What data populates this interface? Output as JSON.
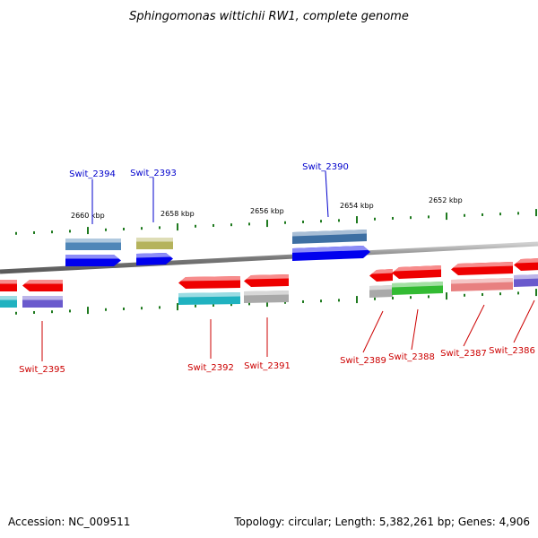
{
  "title": "Sphingomonas wittichii RW1, complete genome",
  "footer": {
    "accession": "Accession: NC_009511",
    "summary": "Topology: circular; Length: 5,382,261 bp; Genes: 4,906"
  },
  "colors": {
    "backbone": "#8a8a8a",
    "tick": "#1f7a1f",
    "top_label": "#0000cc",
    "bottom_label": "#cc0000"
  },
  "ticks": [
    {
      "label": "2660 kbp"
    },
    {
      "label": "2658 kbp"
    },
    {
      "label": "2656 kbp"
    },
    {
      "label": "2654 kbp"
    },
    {
      "label": "2652 kbp"
    }
  ],
  "genes_top": [
    {
      "label": "Swit_2394",
      "gene_color": "#4f86b8",
      "cds_color": "#0000ee"
    },
    {
      "label": "Swit_2393",
      "gene_color": "#b5b35c",
      "cds_color": "#0000ee"
    },
    {
      "label": "Swit_2390",
      "gene_color": "#3d6fa3",
      "cds_color": "#0000ee"
    }
  ],
  "genes_bottom": [
    {
      "label": "Swit_2395",
      "cds_color": "#ee0000",
      "gene_color": "#6a5acd"
    },
    {
      "label": "Swit_2392",
      "cds_color": "#ee0000",
      "gene_color": "#20b2c0"
    },
    {
      "label": "Swit_2391",
      "cds_color": "#ee0000",
      "gene_color": "#a9a9a9"
    },
    {
      "label": "Swit_2389",
      "cds_color": "#ee0000",
      "gene_color": "#a9a9a9"
    },
    {
      "label": "Swit_2388",
      "cds_color": "#ee0000",
      "gene_color": "#33bb33"
    },
    {
      "label": "Swit_2387",
      "cds_color": "#ee0000",
      "gene_color": "#e88080"
    },
    {
      "label": "Swit_2386",
      "cds_color": "#ee0000",
      "gene_color": "#6a5acd"
    }
  ]
}
